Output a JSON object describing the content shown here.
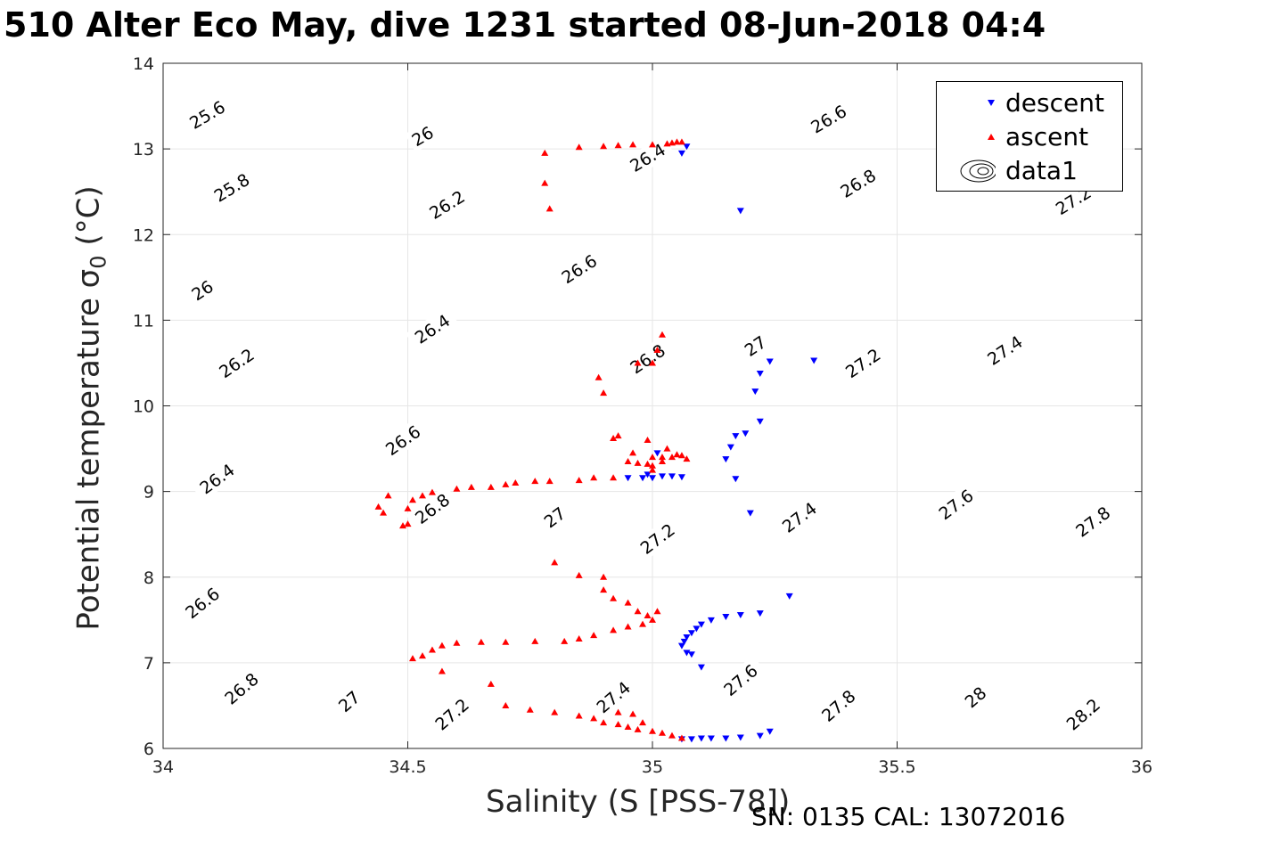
{
  "title": "510 Alter Eco May, dive 1231 started 08-Jun-2018 04:4",
  "footer": "SN: 0135  CAL: 13072016",
  "chart_data": {
    "type": "scatter",
    "title": "510 Alter Eco May, dive 1231 started 08-Jun-2018 04:4",
    "xlabel": "Salinity (S [PSS-78])",
    "ylabel": {
      "main": "Potential temperature ",
      "greek": "σ",
      "sub": "0",
      "unit": " (°C)"
    },
    "xlim": [
      34,
      36
    ],
    "ylim": [
      6,
      14
    ],
    "xticks": [
      "34",
      "34.5",
      "35",
      "35.5",
      "36"
    ],
    "yticks": [
      "6",
      "7",
      "8",
      "9",
      "10",
      "11",
      "12",
      "13",
      "14"
    ],
    "grid": true,
    "legend_position": "top-right",
    "legend": [
      "descent",
      "ascent",
      "data1"
    ],
    "contours": {
      "name": "data1",
      "levels": [
        25.6,
        25.8,
        26,
        26.2,
        26.4,
        26.6,
        26.8,
        27,
        27.2,
        27.4,
        27.6,
        27.8,
        28,
        28.2
      ],
      "labels": [
        {
          "text": "25.6",
          "s": 34.09,
          "t": 13.4
        },
        {
          "text": "25.8",
          "s": 34.14,
          "t": 12.55
        },
        {
          "text": "26",
          "s": 34.08,
          "t": 11.35
        },
        {
          "text": "26",
          "s": 34.53,
          "t": 13.15
        },
        {
          "text": "26.2",
          "s": 34.15,
          "t": 10.5
        },
        {
          "text": "26.2",
          "s": 34.58,
          "t": 12.35
        },
        {
          "text": "26.4",
          "s": 34.11,
          "t": 9.15
        },
        {
          "text": "26.4",
          "s": 34.55,
          "t": 10.9
        },
        {
          "text": "26.4",
          "s": 34.99,
          "t": 12.9
        },
        {
          "text": "26.6",
          "s": 34.08,
          "t": 7.7
        },
        {
          "text": "26.6",
          "s": 34.49,
          "t": 9.6
        },
        {
          "text": "26.6",
          "s": 34.85,
          "t": 11.6
        },
        {
          "text": "26.6",
          "s": 35.36,
          "t": 13.35
        },
        {
          "text": "26.8",
          "s": 34.16,
          "t": 6.7
        },
        {
          "text": "26.8",
          "s": 34.55,
          "t": 8.8
        },
        {
          "text": "26.8",
          "s": 34.99,
          "t": 10.55
        },
        {
          "text": "26.8",
          "s": 35.42,
          "t": 12.6
        },
        {
          "text": "27",
          "s": 34.38,
          "t": 6.55
        },
        {
          "text": "27",
          "s": 34.8,
          "t": 8.7
        },
        {
          "text": "27",
          "s": 35.21,
          "t": 10.7
        },
        {
          "text": "27.2",
          "s": 34.59,
          "t": 6.4
        },
        {
          "text": "27.2",
          "s": 35.01,
          "t": 8.45
        },
        {
          "text": "27.2",
          "s": 35.43,
          "t": 10.5
        },
        {
          "text": "27.2",
          "s": 35.86,
          "t": 12.4
        },
        {
          "text": "27.4",
          "s": 34.92,
          "t": 6.6
        },
        {
          "text": "27.4",
          "s": 35.3,
          "t": 8.7
        },
        {
          "text": "27.4",
          "s": 35.72,
          "t": 10.65
        },
        {
          "text": "27.6",
          "s": 35.18,
          "t": 6.8
        },
        {
          "text": "27.6",
          "s": 35.62,
          "t": 8.85
        },
        {
          "text": "27.8",
          "s": 35.38,
          "t": 6.5
        },
        {
          "text": "27.8",
          "s": 35.9,
          "t": 8.65
        },
        {
          "text": "28",
          "s": 35.66,
          "t": 6.6
        },
        {
          "text": "28.2",
          "s": 35.88,
          "t": 6.4
        }
      ]
    },
    "series": [
      {
        "name": "descent",
        "marker": "triangle-down",
        "color": "#0000ff",
        "points": [
          [
            35.07,
            13.03
          ],
          [
            35.06,
            12.95
          ],
          [
            35.18,
            12.28
          ],
          [
            35.33,
            10.53
          ],
          [
            35.24,
            10.52
          ],
          [
            35.22,
            10.38
          ],
          [
            35.21,
            10.17
          ],
          [
            35.22,
            9.82
          ],
          [
            35.19,
            9.68
          ],
          [
            35.17,
            9.65
          ],
          [
            35.16,
            9.52
          ],
          [
            35.15,
            9.38
          ],
          [
            35.01,
            9.45
          ],
          [
            34.99,
            9.2
          ],
          [
            35.02,
            9.18
          ],
          [
            35.04,
            9.18
          ],
          [
            35.06,
            9.17
          ],
          [
            34.95,
            9.16
          ],
          [
            34.98,
            9.16
          ],
          [
            35.0,
            9.16
          ],
          [
            35.17,
            9.15
          ],
          [
            35.2,
            8.75
          ],
          [
            35.28,
            7.78
          ],
          [
            35.22,
            7.58
          ],
          [
            35.18,
            7.56
          ],
          [
            35.15,
            7.54
          ],
          [
            35.12,
            7.5
          ],
          [
            35.1,
            7.45
          ],
          [
            35.09,
            7.4
          ],
          [
            35.08,
            7.35
          ],
          [
            35.07,
            7.3
          ],
          [
            35.065,
            7.25
          ],
          [
            35.06,
            7.2
          ],
          [
            35.07,
            7.12
          ],
          [
            35.08,
            7.1
          ],
          [
            35.1,
            6.95
          ],
          [
            35.24,
            6.2
          ],
          [
            35.22,
            6.15
          ],
          [
            35.18,
            6.13
          ],
          [
            35.15,
            6.12
          ],
          [
            35.12,
            6.12
          ],
          [
            35.1,
            6.12
          ],
          [
            35.08,
            6.11
          ],
          [
            35.06,
            6.11
          ]
        ]
      },
      {
        "name": "ascent",
        "marker": "triangle-up",
        "color": "#ff0000",
        "points": [
          [
            35.06,
            13.08
          ],
          [
            35.05,
            13.08
          ],
          [
            35.04,
            13.07
          ],
          [
            35.03,
            13.06
          ],
          [
            35.0,
            13.05
          ],
          [
            34.96,
            13.05
          ],
          [
            34.93,
            13.04
          ],
          [
            34.9,
            13.03
          ],
          [
            34.85,
            13.02
          ],
          [
            34.78,
            12.95
          ],
          [
            34.78,
            12.6
          ],
          [
            34.79,
            12.3
          ],
          [
            35.02,
            10.83
          ],
          [
            35.01,
            10.65
          ],
          [
            35.0,
            10.5
          ],
          [
            34.97,
            10.5
          ],
          [
            34.89,
            10.33
          ],
          [
            34.9,
            10.15
          ],
          [
            34.93,
            9.65
          ],
          [
            34.92,
            9.62
          ],
          [
            34.99,
            9.6
          ],
          [
            35.03,
            9.5
          ],
          [
            34.96,
            9.45
          ],
          [
            35.0,
            9.4
          ],
          [
            35.02,
            9.4
          ],
          [
            35.05,
            9.43
          ],
          [
            35.07,
            9.38
          ],
          [
            34.95,
            9.35
          ],
          [
            34.97,
            9.33
          ],
          [
            34.99,
            9.32
          ],
          [
            35.0,
            9.3
          ],
          [
            35.02,
            9.35
          ],
          [
            35.04,
            9.4
          ],
          [
            35.06,
            9.42
          ],
          [
            35.0,
            9.25
          ],
          [
            34.92,
            9.16
          ],
          [
            34.88,
            9.16
          ],
          [
            34.85,
            9.13
          ],
          [
            34.79,
            9.12
          ],
          [
            34.76,
            9.12
          ],
          [
            34.72,
            9.1
          ],
          [
            34.7,
            9.08
          ],
          [
            34.67,
            9.05
          ],
          [
            34.63,
            9.05
          ],
          [
            34.6,
            9.03
          ],
          [
            34.55,
            8.99
          ],
          [
            34.53,
            8.95
          ],
          [
            34.51,
            8.9
          ],
          [
            34.5,
            8.8
          ],
          [
            34.49,
            8.6
          ],
          [
            34.5,
            8.62
          ],
          [
            34.46,
            8.95
          ],
          [
            34.44,
            8.82
          ],
          [
            34.45,
            8.75
          ],
          [
            34.8,
            8.17
          ],
          [
            34.85,
            8.02
          ],
          [
            34.9,
            8.0
          ],
          [
            34.9,
            7.85
          ],
          [
            34.92,
            7.75
          ],
          [
            34.95,
            7.7
          ],
          [
            34.97,
            7.6
          ],
          [
            34.99,
            7.55
          ],
          [
            35.01,
            7.6
          ],
          [
            35.0,
            7.5
          ],
          [
            34.98,
            7.45
          ],
          [
            34.95,
            7.42
          ],
          [
            34.92,
            7.38
          ],
          [
            34.88,
            7.32
          ],
          [
            34.85,
            7.28
          ],
          [
            34.82,
            7.25
          ],
          [
            34.76,
            7.25
          ],
          [
            34.7,
            7.24
          ],
          [
            34.65,
            7.24
          ],
          [
            34.6,
            7.23
          ],
          [
            34.57,
            7.2
          ],
          [
            34.55,
            7.15
          ],
          [
            34.53,
            7.08
          ],
          [
            34.51,
            7.05
          ],
          [
            34.57,
            6.9
          ],
          [
            34.67,
            6.75
          ],
          [
            34.7,
            6.5
          ],
          [
            34.75,
            6.45
          ],
          [
            34.8,
            6.42
          ],
          [
            34.85,
            6.38
          ],
          [
            34.88,
            6.35
          ],
          [
            34.9,
            6.3
          ],
          [
            34.93,
            6.28
          ],
          [
            34.95,
            6.25
          ],
          [
            34.97,
            6.22
          ],
          [
            35.0,
            6.2
          ],
          [
            35.02,
            6.18
          ],
          [
            35.04,
            6.15
          ],
          [
            35.06,
            6.12
          ],
          [
            34.93,
            6.42
          ],
          [
            34.96,
            6.4
          ],
          [
            34.98,
            6.3
          ]
        ]
      }
    ]
  }
}
